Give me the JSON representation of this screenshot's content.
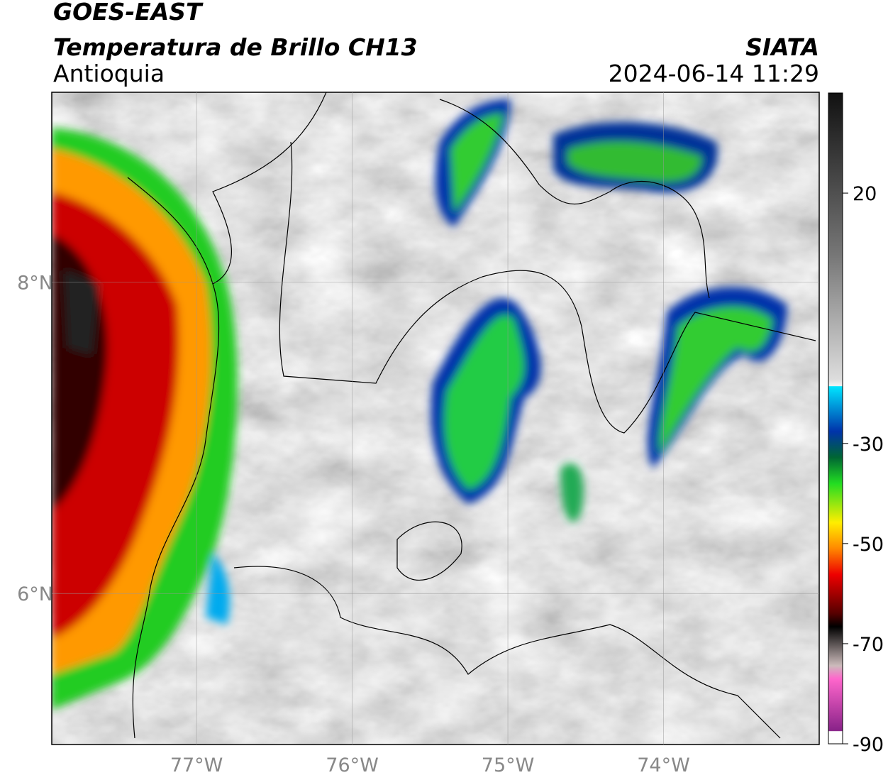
{
  "header": {
    "title": "GOES-EAST",
    "subtitle": "Temperatura de Brillo CH13",
    "region": "Antioquia",
    "source": "SIATA",
    "datetime": "2024-06-14 11:29"
  },
  "map": {
    "xlim": [
      -77.93,
      -73.0
    ],
    "ylim": [
      5.03,
      9.22
    ],
    "xticks": [
      {
        "value": -77,
        "label": "77°W"
      },
      {
        "value": -76,
        "label": "76°W"
      },
      {
        "value": -75,
        "label": "75°W"
      },
      {
        "value": -74,
        "label": "74°W"
      }
    ],
    "yticks": [
      {
        "value": 6,
        "label": "6°N"
      },
      {
        "value": 8,
        "label": "8°N"
      }
    ],
    "grid": true
  },
  "colorbar": {
    "lim": [
      -90,
      40
    ],
    "ticks": [
      20,
      -30,
      -50,
      -70,
      -90
    ]
  }
}
